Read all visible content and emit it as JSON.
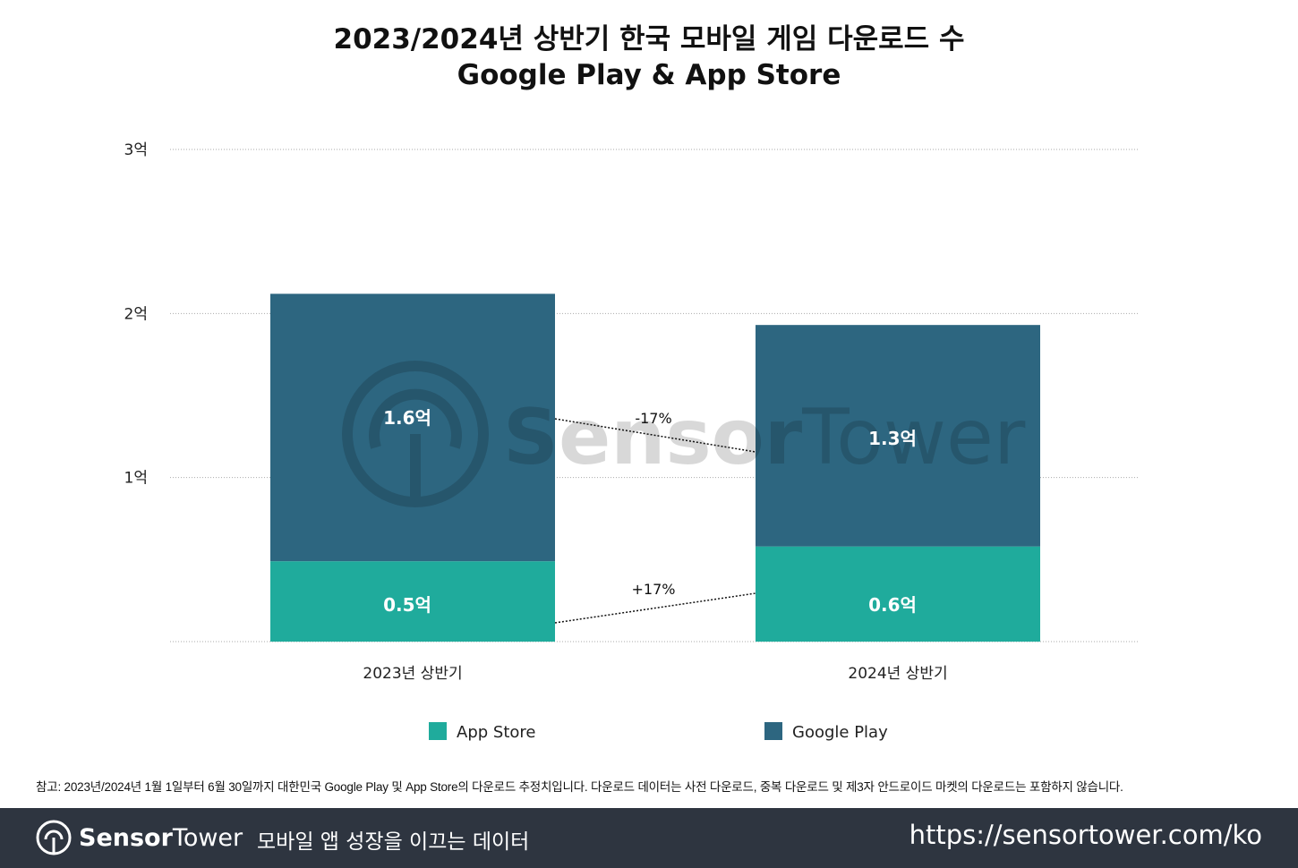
{
  "chart_data": {
    "type": "bar",
    "stacked": true,
    "title": "2023/2024년 상반기 한국 모바일 게임 다운로드 수",
    "subtitle": "Google Play & App Store",
    "categories": [
      "2023년 상반기",
      "2024년 상반기"
    ],
    "series": [
      {
        "name": "App Store",
        "values": [
          0.49,
          0.58
        ],
        "labels": [
          "0.5억",
          "0.6억"
        ],
        "color": "#1fab9c"
      },
      {
        "name": "Google Play",
        "values": [
          1.63,
          1.35
        ],
        "labels": [
          "1.6억",
          "1.3억"
        ],
        "color": "#2d6680"
      }
    ],
    "ylim": [
      0,
      3
    ],
    "yticks": [
      {
        "value": 1,
        "label": "1억"
      },
      {
        "value": 2,
        "label": "2억"
      },
      {
        "value": 3,
        "label": "3억"
      }
    ],
    "grid": true,
    "annotations": {
      "google_play_change": "-17%",
      "app_store_change": "+17%"
    },
    "legend_placement": "bottom",
    "watermark": "SensorTower",
    "xlabel": "",
    "ylabel": ""
  },
  "footnote": "참고: 2023년/2024년 1월 1일부터 6월 30일까지 대한민국 Google Play 및 App Store의 다운로드 추정치입니다. 다운로드 데이터는 사전 다운로드, 중복 다운로드 및 제3자 안드로이드 마켓의 다운로드는 포함하지 않습니다.",
  "footer": {
    "brand_bold": "Sensor",
    "brand_light": "Tower",
    "tagline": "모바일 앱 성장을 이끄는 데이터",
    "url": "https://sensortower.com/ko"
  }
}
